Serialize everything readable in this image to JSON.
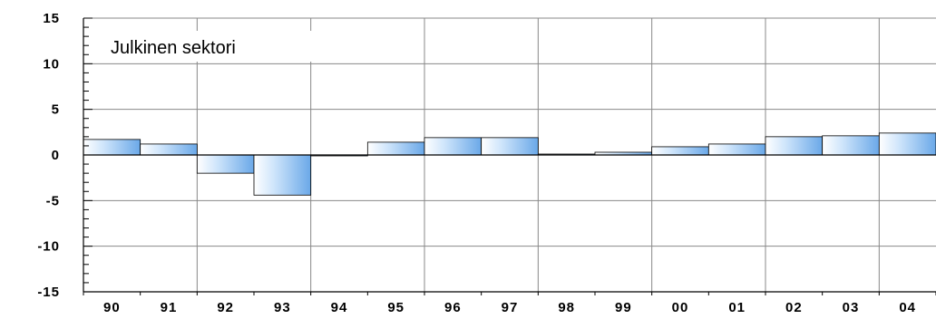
{
  "chart_data": {
    "type": "bar",
    "title": "Julkinen sektori",
    "xlabel": "",
    "ylabel": "",
    "categories": [
      "90",
      "91",
      "92",
      "93",
      "94",
      "95",
      "96",
      "97",
      "98",
      "99",
      "00",
      "01",
      "02",
      "03",
      "04"
    ],
    "values": [
      1.7,
      1.2,
      -2.0,
      -4.4,
      0.0,
      1.4,
      1.9,
      1.9,
      0.1,
      0.3,
      0.9,
      1.2,
      2.0,
      2.1,
      2.4
    ],
    "ylim": [
      -15,
      15
    ],
    "yticks": [
      "15",
      "10",
      "5",
      "0",
      "-5",
      "-10",
      "-15"
    ],
    "grid": true,
    "colors": {
      "bar_light": "#ffffff",
      "bar_mid": "#c8e2fb",
      "bar_dark": "#6aa8e8",
      "grid": "#888888",
      "axis": "#000000"
    }
  }
}
